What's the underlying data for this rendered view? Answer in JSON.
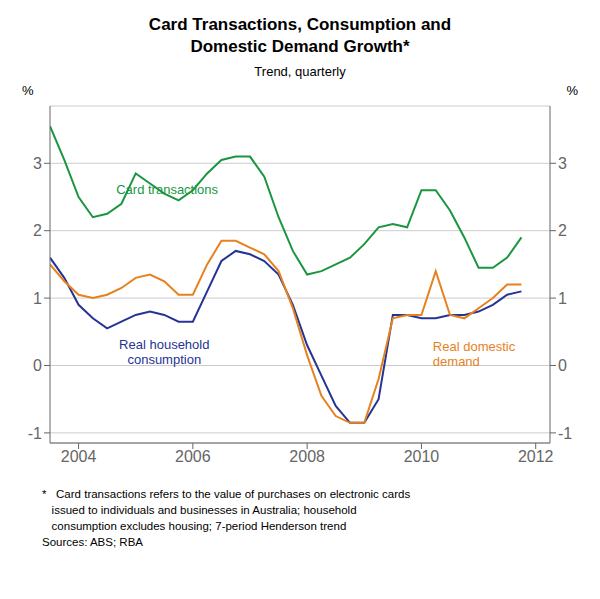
{
  "chart_data": {
    "type": "line",
    "title": "Card Transactions, Consumption and\nDomestic Demand Growth*",
    "subtitle": "Trend, quarterly",
    "ylabel": "%",
    "y2label": "%",
    "footnote": "*   Card transactions refers to the value of purchases on electronic cards\n   issued to individuals and businesses in Australia; household\n   consumption excludes housing; 7-period Henderson trend\nSources: ABS; RBA",
    "x": [
      2003.5,
      2003.75,
      2004.0,
      2004.25,
      2004.5,
      2004.75,
      2005.0,
      2005.25,
      2005.5,
      2005.75,
      2006.0,
      2006.25,
      2006.5,
      2006.75,
      2007.0,
      2007.25,
      2007.5,
      2007.75,
      2008.0,
      2008.25,
      2008.5,
      2008.75,
      2009.0,
      2009.25,
      2009.5,
      2009.75,
      2010.0,
      2010.25,
      2010.5,
      2010.75,
      2011.0,
      2011.25,
      2011.5,
      2011.75
    ],
    "series": [
      {
        "name": "Card transactions",
        "color": "#1a9641",
        "values": [
          3.55,
          3.05,
          2.5,
          2.2,
          2.25,
          2.4,
          2.85,
          2.7,
          2.55,
          2.45,
          2.6,
          2.85,
          3.05,
          3.1,
          3.1,
          2.8,
          2.2,
          1.7,
          1.35,
          1.4,
          1.5,
          1.6,
          1.8,
          2.05,
          2.1,
          2.05,
          2.6,
          2.6,
          2.3,
          1.9,
          1.45,
          1.45,
          1.6,
          1.9
        ]
      },
      {
        "name": "Real household\nconsumption",
        "color": "#253494",
        "values": [
          1.6,
          1.3,
          0.9,
          0.7,
          0.55,
          0.65,
          0.75,
          0.8,
          0.75,
          0.65,
          0.65,
          1.1,
          1.55,
          1.7,
          1.65,
          1.55,
          1.35,
          0.9,
          0.3,
          -0.15,
          -0.6,
          -0.85,
          -0.85,
          -0.5,
          0.75,
          0.75,
          0.7,
          0.7,
          0.75,
          0.75,
          0.8,
          0.9,
          1.05,
          1.1
        ]
      },
      {
        "name": "Real domestic\ndemand",
        "color": "#e6821e",
        "values": [
          1.5,
          1.25,
          1.05,
          1.0,
          1.05,
          1.15,
          1.3,
          1.35,
          1.25,
          1.05,
          1.05,
          1.5,
          1.85,
          1.85,
          1.75,
          1.65,
          1.4,
          0.85,
          0.15,
          -0.45,
          -0.75,
          -0.85,
          -0.85,
          -0.2,
          0.7,
          0.75,
          0.75,
          1.4,
          0.75,
          0.7,
          0.85,
          1.0,
          1.2,
          1.2
        ]
      }
    ],
    "xlim": [
      2003.5,
      2012.25
    ],
    "xticks": [
      2004,
      2006,
      2008,
      2010,
      2012
    ],
    "ylim": [
      -1.15,
      3.85
    ],
    "yticks": [
      -1,
      0,
      1,
      2,
      3
    ],
    "y2lim": [
      -1.15,
      3.85
    ],
    "y2ticks": [
      -1,
      0,
      1,
      2,
      3
    ],
    "grid": "y"
  }
}
